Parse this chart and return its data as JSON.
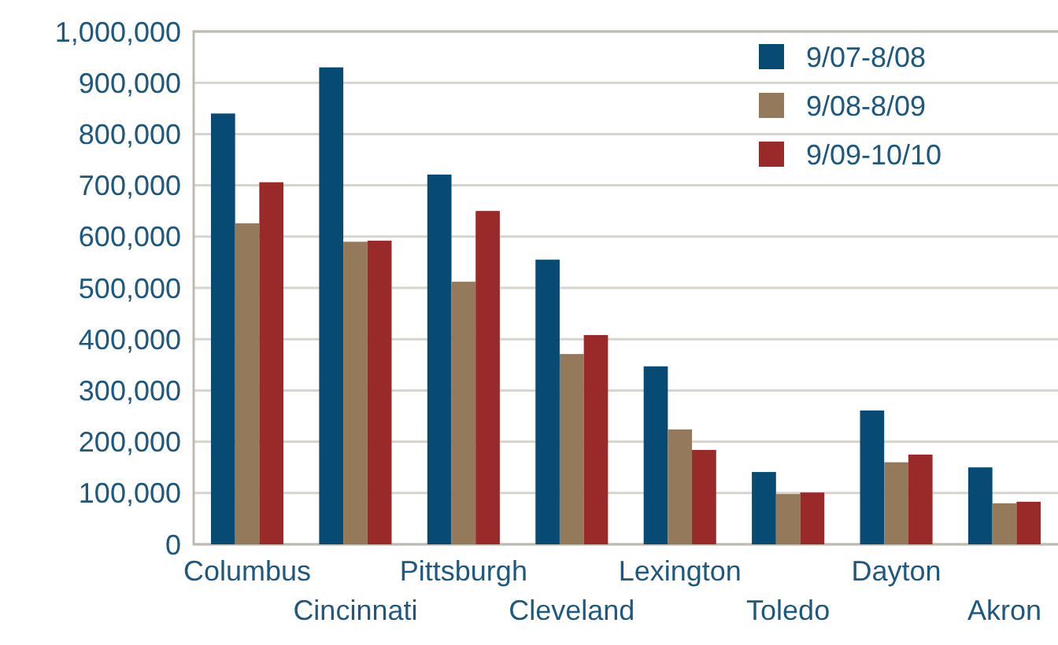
{
  "chart_data": {
    "type": "bar",
    "categories": [
      "Columbus",
      "Cincinnati",
      "Pittsburgh",
      "Cleveland",
      "Lexington",
      "Toledo",
      "Dayton",
      "Akron"
    ],
    "series": [
      {
        "name": "9/07-8/08",
        "color": "#074b74",
        "values": [
          840000,
          930000,
          721000,
          555000,
          347000,
          141000,
          261000,
          150000
        ]
      },
      {
        "name": "9/08-8/09",
        "color": "#94795a",
        "values": [
          626000,
          590000,
          512000,
          371000,
          224000,
          98000,
          160000,
          80000
        ]
      },
      {
        "name": "9/09-10/10",
        "color": "#9a2a2a",
        "values": [
          706000,
          592000,
          650000,
          408000,
          184000,
          101000,
          175000,
          83000
        ]
      }
    ],
    "ylim": [
      0,
      1000000
    ],
    "yticks": [
      {
        "value": 0,
        "label": "0"
      },
      {
        "value": 100000,
        "label": "100,000"
      },
      {
        "value": 200000,
        "label": "200,000"
      },
      {
        "value": 300000,
        "label": "300,000"
      },
      {
        "value": 400000,
        "label": "400,000"
      },
      {
        "value": 500000,
        "label": "500,000"
      },
      {
        "value": 600000,
        "label": "600,000"
      },
      {
        "value": 700000,
        "label": "700,000"
      },
      {
        "value": 800000,
        "label": "800,000"
      },
      {
        "value": 900000,
        "label": "900,000"
      },
      {
        "value": 1000000,
        "label": "1,000,000"
      }
    ],
    "grid": "y",
    "legend": "top right"
  }
}
